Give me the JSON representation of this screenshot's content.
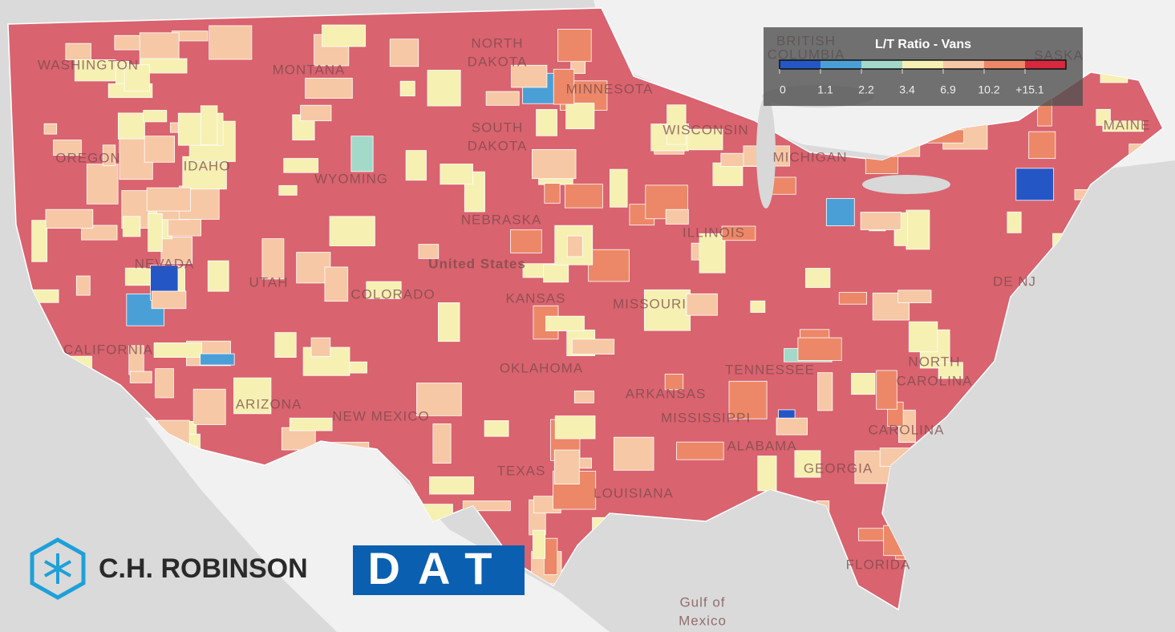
{
  "legend": {
    "title": "L/T Ratio - Vans",
    "colors": [
      "#2456c6",
      "#4aa0d6",
      "#a3d9c9",
      "#f6f0b3",
      "#f7c8a6",
      "#ec8868",
      "#d6283e"
    ],
    "ticks": [
      0,
      1.1,
      2.2,
      3.4,
      6.9,
      10.2,
      {
        "value": 15.1,
        "label": "+15.1"
      }
    ]
  },
  "map_labels": [
    "WASHINGTON",
    "OREGON",
    "IDAHO",
    "MONTANA",
    "NORTH",
    "DAKOTA",
    "SOUTH",
    "DAKOTA",
    "WYOMING",
    "NEVADA",
    "UTAH",
    "COLORADO",
    "CALIFORNIA",
    "ARIZONA",
    "NEW MEXICO",
    "NEBRASKA",
    "KANSAS",
    "OKLAHOMA",
    "TEXAS",
    "MINNESOTA",
    "WISCONSIN",
    "MICHIGAN",
    "ILLINOIS",
    "MISSOURI",
    "ARKANSAS",
    "MISSISSIPPI",
    "ALABAMA",
    "GEORGIA",
    "FLORIDA",
    "LOUISIANA",
    "TENNESSEE",
    "NORTH",
    "CAROLINA",
    "CAROLINA",
    "MAINE",
    "DE NJ",
    "United States",
    "Gulf of",
    "Mexico",
    "BRITISH",
    "COLUMBIA",
    "SASKA"
  ],
  "logos": {
    "robinson": "C.H. ROBINSON",
    "dat": "DAT"
  }
}
